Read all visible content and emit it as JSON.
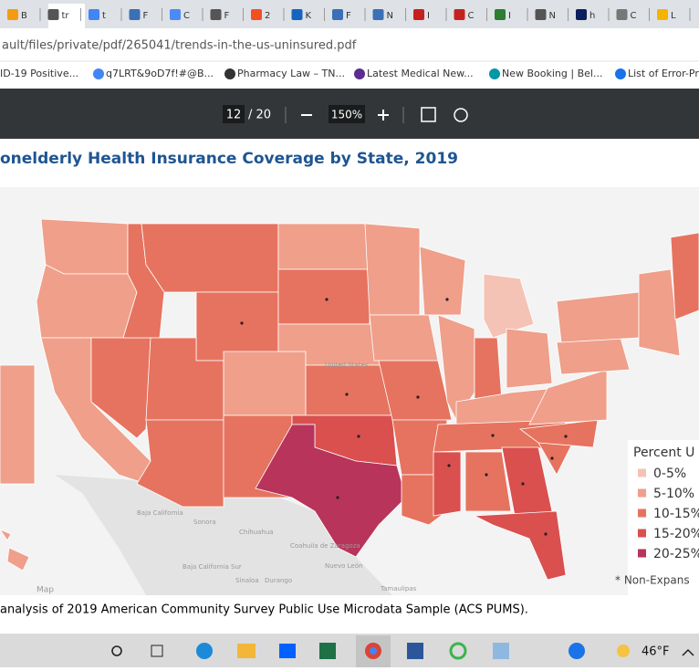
{
  "browser": {
    "tabs": [
      "B",
      "tr",
      "t",
      "F",
      "C",
      "F",
      "2",
      "K",
      "F",
      "N",
      "I",
      "C",
      "I",
      "N",
      "h",
      "C",
      "L"
    ],
    "url": "ault/files/private/pdf/265041/trends-in-the-us-uninsured.pdf",
    "bookmarks": [
      "ID-19 Positive...",
      "q7LRT&9oD7f!#@B...",
      "Pharmacy Law – TN...",
      "Latest Medical New...",
      "New Booking | Bel...",
      "List of Error-Pr"
    ]
  },
  "pdf_toolbar": {
    "page": "12",
    "total": "/ 20",
    "zoom": "150%"
  },
  "document": {
    "title": "onelderly Health Insurance Coverage by State, 2019",
    "legend_title": "Percent U",
    "legend": [
      "0-5%",
      "5-10%",
      "10-15%",
      "15-20%",
      "20-25%"
    ],
    "legend_colors": [
      "#f4c3b5",
      "#ef9f8a",
      "#e6735f",
      "#d9504f",
      "#b8345a"
    ],
    "legend_note": "* Non-Expans",
    "map_labels": [
      "United States",
      "Baja California",
      "Sonora",
      "Chihuahua",
      "Coahuila de Zaragoza",
      "Nuevo León",
      "Tamaulipas",
      "Baja California Sur",
      "Sinaloa",
      "Durango",
      "Map"
    ],
    "footnote": "analysis of 2019 American Community Survey Public Use Microdata Sample (ACS PUMS)."
  },
  "taskbar": {
    "weather": "46°F"
  }
}
